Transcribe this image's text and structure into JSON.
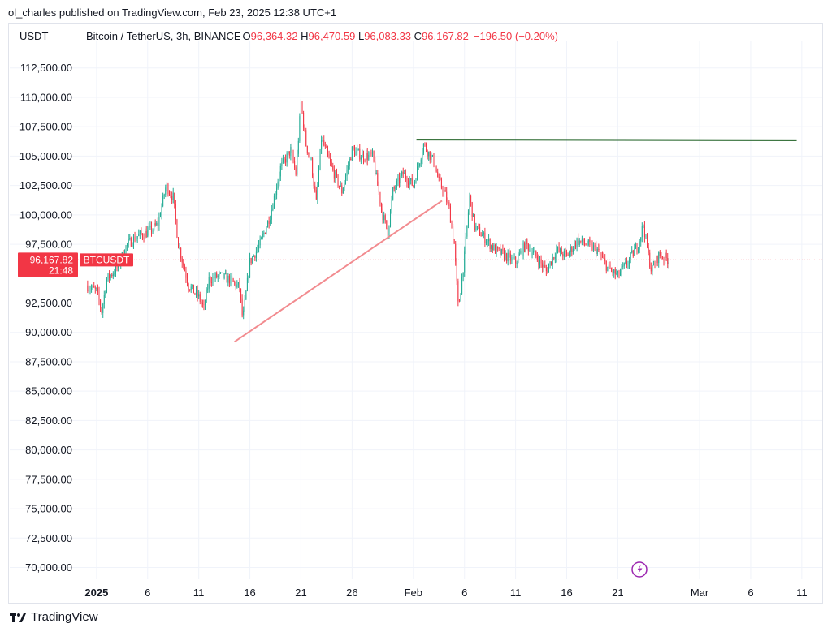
{
  "publisher_line": "ol_charles published on TradingView.com, Feb 23, 2025 12:38 UTC+1",
  "legend": {
    "symbol": "USDT",
    "title": "Bitcoin / TetherUS, 3h, BINANCE",
    "o_label": "O",
    "o_value": "96,364.32",
    "h_label": "H",
    "h_value": "96,470.59",
    "l_label": "L",
    "l_value": "96,083.33",
    "c_label": "C",
    "c_value": "96,167.82",
    "change": "−196.50 (−0.20%)"
  },
  "price_badge": {
    "price": "96,167.82",
    "time": "21:48",
    "ticker": "BTCUSDT"
  },
  "footer_brand": "TradingView",
  "colors": {
    "up": "#22ab94",
    "down": "#f23645",
    "trendline": "#f28b8f",
    "resistance": "#1b5e20",
    "grid": "#f0f3fa",
    "alert": "#9c27b0"
  },
  "chart_data": {
    "type": "candlestick",
    "ylim": [
      69000,
      114000
    ],
    "y_ticks": [
      "112,500.00",
      "110,000.00",
      "107,500.00",
      "105,000.00",
      "102,500.00",
      "100,000.00",
      "97,500.00",
      "92,500.00",
      "90,000.00",
      "87,500.00",
      "85,000.00",
      "82,500.00",
      "80,000.00",
      "77,500.00",
      "75,000.00",
      "72,500.00",
      "70,000.00"
    ],
    "y_tick_values": [
      112500,
      110000,
      107500,
      105000,
      102500,
      100000,
      97500,
      92500,
      90000,
      87500,
      85000,
      82500,
      80000,
      77500,
      75000,
      72500,
      70000
    ],
    "x_ticks": [
      {
        "label": "2025",
        "day": 0,
        "bold": true
      },
      {
        "label": "6",
        "day": 5
      },
      {
        "label": "11",
        "day": 10
      },
      {
        "label": "16",
        "day": 15
      },
      {
        "label": "21",
        "day": 20
      },
      {
        "label": "26",
        "day": 25
      },
      {
        "label": "Feb",
        "day": 31
      },
      {
        "label": "6",
        "day": 36
      },
      {
        "label": "11",
        "day": 41
      },
      {
        "label": "16",
        "day": 46
      },
      {
        "label": "21",
        "day": 51
      },
      {
        "label": "Mar",
        "day": 59
      },
      {
        "label": "6",
        "day": 64
      },
      {
        "label": "11",
        "day": 69
      }
    ],
    "price_path": [
      [
        -1,
        94000
      ],
      [
        0,
        93500
      ],
      [
        0.5,
        91800
      ],
      [
        1,
        94500
      ],
      [
        2,
        95500
      ],
      [
        3,
        97500
      ],
      [
        4,
        98200
      ],
      [
        5,
        98500
      ],
      [
        6,
        99200
      ],
      [
        6.8,
        102500
      ],
      [
        7.5,
        101500
      ],
      [
        8,
        97500
      ],
      [
        9,
        94000
      ],
      [
        10,
        93000
      ],
      [
        10.5,
        92000
      ],
      [
        11,
        94500
      ],
      [
        12,
        94800
      ],
      [
        13,
        94500
      ],
      [
        14,
        93800
      ],
      [
        14.3,
        91000
      ],
      [
        15,
        96000
      ],
      [
        16,
        97500
      ],
      [
        17,
        100000
      ],
      [
        18,
        104000
      ],
      [
        19,
        105500
      ],
      [
        19.5,
        103500
      ],
      [
        20,
        109500
      ],
      [
        20.5,
        106000
      ],
      [
        21,
        104500
      ],
      [
        21.5,
        101000
      ],
      [
        22,
        106500
      ],
      [
        23,
        104000
      ],
      [
        24,
        102000
      ],
      [
        25,
        105500
      ],
      [
        26,
        105000
      ],
      [
        27,
        105000
      ],
      [
        28,
        100000
      ],
      [
        28.5,
        98500
      ],
      [
        29,
        102000
      ],
      [
        30,
        103500
      ],
      [
        31,
        102500
      ],
      [
        32,
        106000
      ],
      [
        33,
        104500
      ],
      [
        33.5,
        102800
      ],
      [
        34,
        102000
      ],
      [
        34.5,
        100500
      ],
      [
        35,
        97500
      ],
      [
        35.4,
        92000
      ],
      [
        36,
        96500
      ],
      [
        36.5,
        101500
      ],
      [
        37,
        99000
      ],
      [
        38,
        98000
      ],
      [
        39,
        97000
      ],
      [
        40,
        96500
      ],
      [
        41,
        96000
      ],
      [
        42,
        97500
      ],
      [
        43,
        96500
      ],
      [
        44,
        95200
      ],
      [
        45,
        97000
      ],
      [
        46,
        96500
      ],
      [
        47,
        97800
      ],
      [
        48,
        97500
      ],
      [
        49,
        97000
      ],
      [
        50,
        95500
      ],
      [
        51,
        94800
      ],
      [
        52,
        96000
      ],
      [
        53,
        97500
      ],
      [
        53.5,
        99200
      ],
      [
        54,
        96500
      ],
      [
        54.3,
        95200
      ],
      [
        55,
        96600
      ],
      [
        56,
        96168
      ]
    ],
    "trendline": {
      "from": [
        13.5,
        89200
      ],
      "to": [
        33.8,
        101200
      ]
    },
    "resistance": {
      "from": [
        31.3,
        106400
      ],
      "to": [
        68.5,
        106350
      ]
    },
    "last_price": 96167.82,
    "x_range_days": [
      -1.5,
      71
    ]
  }
}
